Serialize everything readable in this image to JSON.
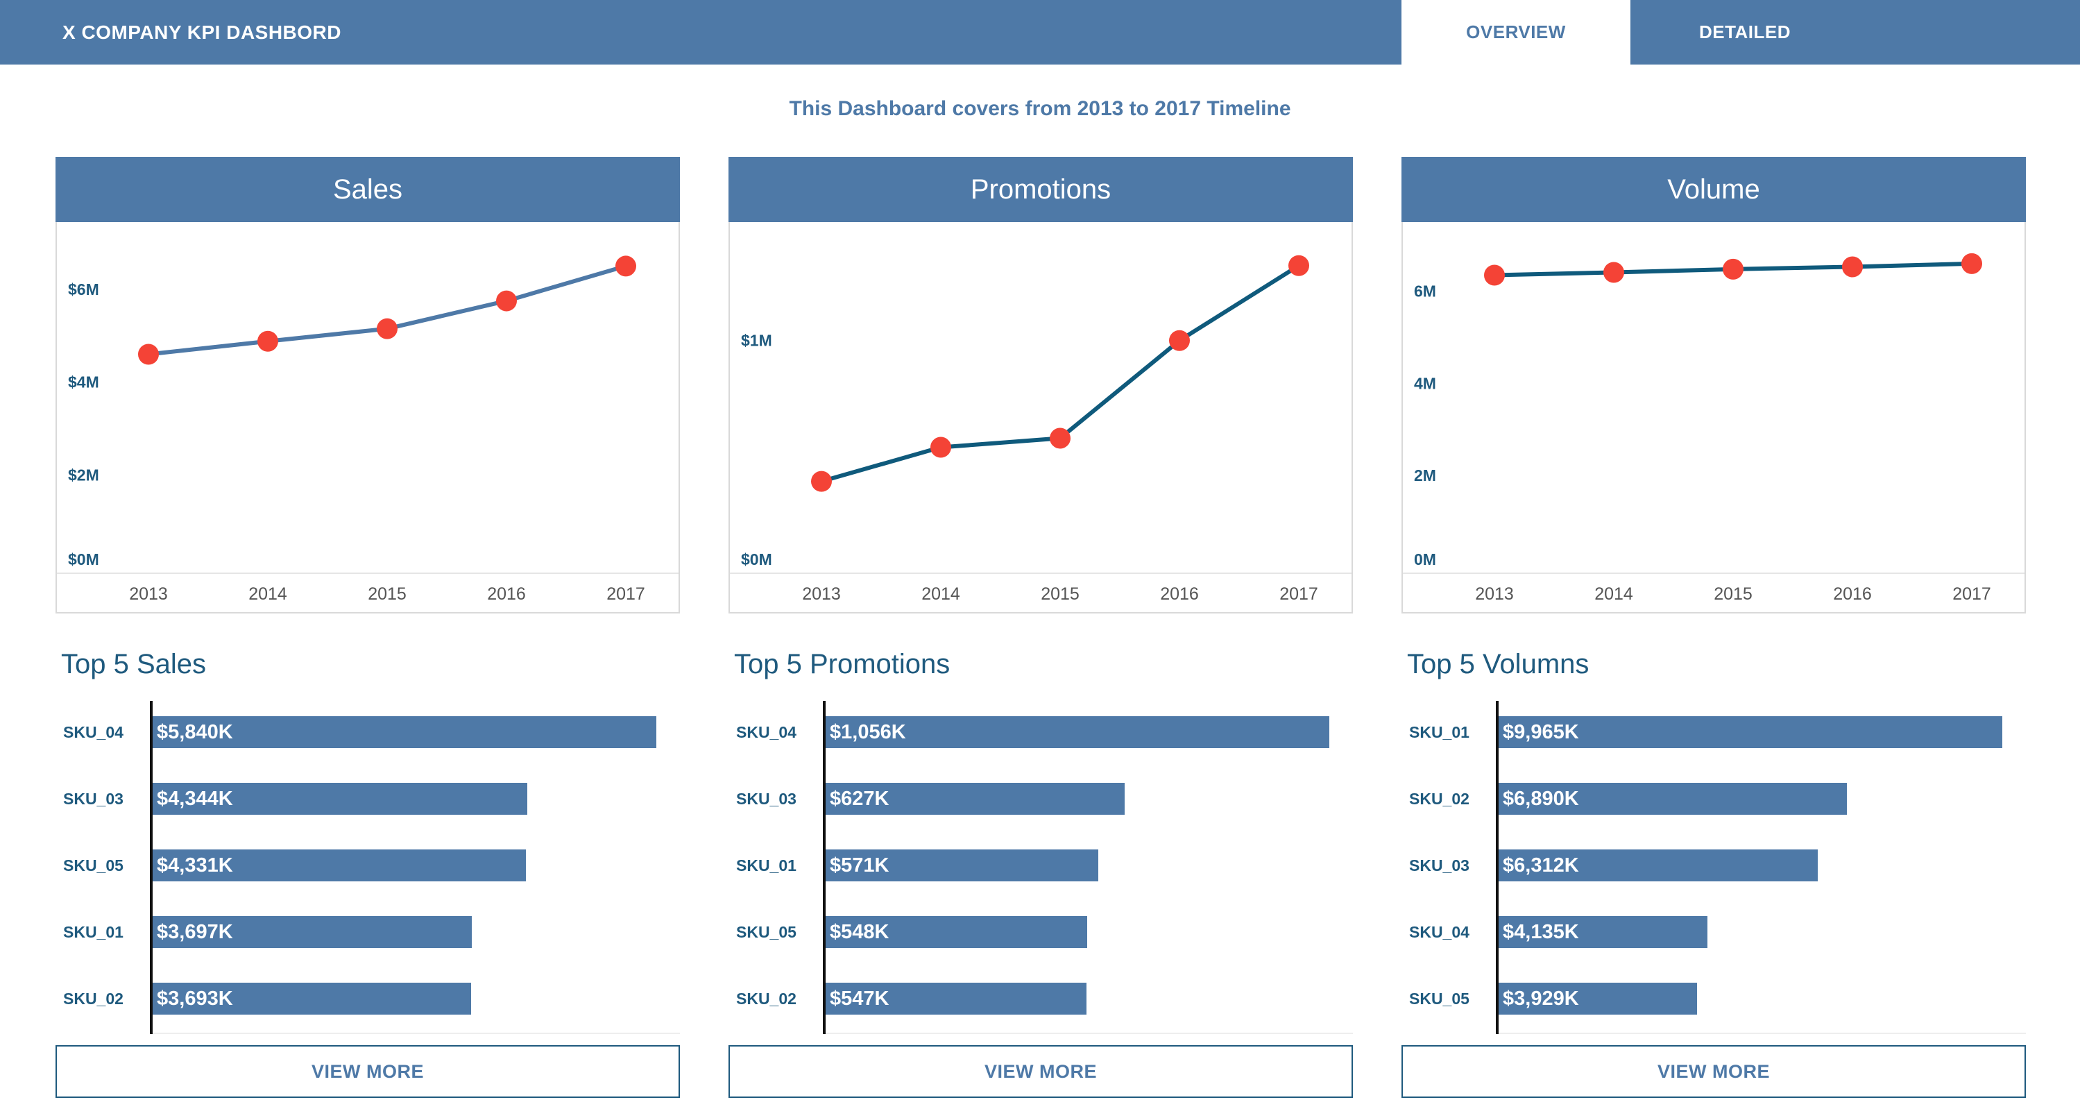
{
  "header": {
    "title": "X COMPANY KPI DASHBORD",
    "tabs": [
      {
        "label": "OVERVIEW",
        "active": true
      },
      {
        "label": "DETAILED",
        "active": false
      }
    ]
  },
  "subtitle": "This Dashboard covers from 2013 to 2017 Timeline",
  "colors": {
    "header": "#4e79a7",
    "line_light": "#4e79a7",
    "line_dark": "#0f5a7c",
    "marker": "#f44336",
    "label": "#1f5a7e"
  },
  "panels": [
    {
      "title": "Sales",
      "top_title": "Top 5 Sales",
      "view_more": "VIEW MORE",
      "bars": [
        {
          "sku": "SKU_04",
          "label": "$5,840K",
          "value": 5840
        },
        {
          "sku": "SKU_03",
          "label": "$4,344K",
          "value": 4344
        },
        {
          "sku": "SKU_05",
          "label": "$4,331K",
          "value": 4331
        },
        {
          "sku": "SKU_01",
          "label": "$3,697K",
          "value": 3697
        },
        {
          "sku": "SKU_02",
          "label": "$3,693K",
          "value": 3693
        }
      ]
    },
    {
      "title": "Promotions",
      "top_title": "Top 5 Promotions",
      "view_more": "VIEW MORE",
      "bars": [
        {
          "sku": "SKU_04",
          "label": "$1,056K",
          "value": 1056
        },
        {
          "sku": "SKU_03",
          "label": "$627K",
          "value": 627
        },
        {
          "sku": "SKU_01",
          "label": "$571K",
          "value": 571
        },
        {
          "sku": "SKU_05",
          "label": "$548K",
          "value": 548
        },
        {
          "sku": "SKU_02",
          "label": "$547K",
          "value": 547
        }
      ]
    },
    {
      "title": "Volume",
      "top_title": "Top 5 Volumns",
      "view_more": "VIEW MORE",
      "bars": [
        {
          "sku": "SKU_01",
          "label": "$9,965K",
          "value": 9965
        },
        {
          "sku": "SKU_02",
          "label": "$6,890K",
          "value": 6890
        },
        {
          "sku": "SKU_03",
          "label": "$6,312K",
          "value": 6312
        },
        {
          "sku": "SKU_04",
          "label": "$4,135K",
          "value": 4135
        },
        {
          "sku": "SKU_05",
          "label": "$3,929K",
          "value": 3929
        }
      ]
    }
  ],
  "chart_data": [
    {
      "type": "line",
      "x": [
        "2013",
        "2014",
        "2015",
        "2016",
        "2017"
      ],
      "values": [
        4.6,
        4.88,
        5.15,
        5.75,
        6.5
      ],
      "yticks": [
        {
          "value": 0,
          "label": "$0M"
        },
        {
          "value": 2,
          "label": "$2M"
        },
        {
          "value": 4,
          "label": "$4M"
        },
        {
          "value": 6,
          "label": "$6M"
        }
      ],
      "ylim": [
        0,
        7
      ],
      "line_color": "#4e79a7",
      "marker_color": "#f44336",
      "grid": false
    },
    {
      "type": "line",
      "x": [
        "2013",
        "2014",
        "2015",
        "2016",
        "2017"
      ],
      "values": [
        0.38,
        0.53,
        0.57,
        1.0,
        1.33
      ],
      "yticks": [
        {
          "value": 0,
          "label": "$0M"
        },
        {
          "value": 1,
          "label": "$1M"
        }
      ],
      "ylim": [
        0,
        1.43
      ],
      "line_color": "#0f5a7c",
      "marker_color": "#f44336",
      "grid": false
    },
    {
      "type": "line",
      "x": [
        "2013",
        "2014",
        "2015",
        "2016",
        "2017"
      ],
      "values": [
        6.35,
        6.41,
        6.48,
        6.53,
        6.6
      ],
      "yticks": [
        {
          "value": 0,
          "label": "0M"
        },
        {
          "value": 2,
          "label": "2M"
        },
        {
          "value": 4,
          "label": "4M"
        },
        {
          "value": 6,
          "label": "6M"
        }
      ],
      "ylim": [
        0,
        7.05
      ],
      "line_color": "#0f5a7c",
      "marker_color": "#f44336",
      "grid": false
    }
  ]
}
